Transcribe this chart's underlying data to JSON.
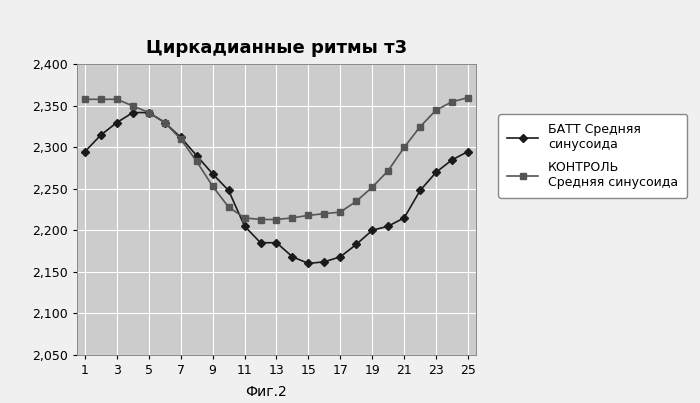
{
  "title": "Циркадианные ритмы т3",
  "fig_caption": "Фиг.2",
  "x_ticks": [
    1,
    3,
    5,
    7,
    9,
    11,
    13,
    15,
    17,
    19,
    21,
    23,
    25
  ],
  "batt_x": [
    1,
    2,
    3,
    4,
    5,
    6,
    7,
    8,
    9,
    10,
    11,
    12,
    13,
    14,
    15,
    16,
    17,
    18,
    19,
    20,
    21,
    22,
    23,
    24,
    25
  ],
  "batt_y": [
    2295,
    2315,
    2330,
    2342,
    2342,
    2330,
    2312,
    2290,
    2268,
    2248,
    2205,
    2185,
    2185,
    2168,
    2160,
    2162,
    2168,
    2183,
    2200,
    2205,
    2215,
    2248,
    2270,
    2285,
    2295
  ],
  "control_x": [
    1,
    2,
    3,
    4,
    5,
    6,
    7,
    8,
    9,
    10,
    11,
    12,
    13,
    14,
    15,
    16,
    17,
    18,
    19,
    20,
    21,
    22,
    23,
    24,
    25
  ],
  "control_y": [
    2358,
    2358,
    2358,
    2350,
    2342,
    2330,
    2310,
    2283,
    2253,
    2228,
    2215,
    2213,
    2213,
    2215,
    2218,
    2220,
    2222,
    2235,
    2252,
    2272,
    2300,
    2325,
    2345,
    2355,
    2360
  ],
  "ylim": [
    2050,
    2400
  ],
  "yticks": [
    2050,
    2100,
    2150,
    2200,
    2250,
    2300,
    2350,
    2400
  ],
  "batt_label1": "БАТТ Средняя",
  "batt_label2": "синусоида",
  "control_label1": "КОНТРОЛЬ",
  "control_label2": "Средняя синусоида",
  "batt_color": "#1a1a1a",
  "control_color": "#555555",
  "plot_bg_color": "#cccccc",
  "fig_bg_color": "#f0f0f0",
  "grid_color": "#ffffff",
  "legend_bg": "#ffffff",
  "title_fontsize": 13,
  "tick_fontsize": 9,
  "legend_fontsize": 9
}
